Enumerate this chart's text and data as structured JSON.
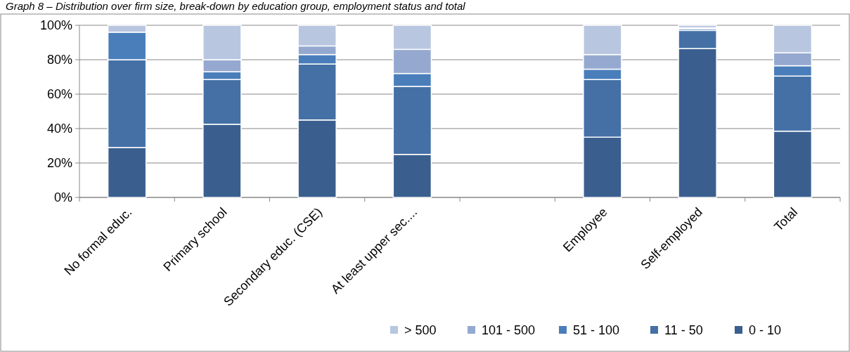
{
  "chart_data": {
    "type": "bar",
    "title": "Graph 8 – Distribution over firm size, break-down by education group, employment status and total",
    "categories": [
      "No formal educ.",
      "Primary school",
      "Secondary educ. (CSE)",
      "At least upper sec....",
      null,
      "Employee",
      "Self-employed",
      "Total"
    ],
    "stacked": true,
    "series": [
      {
        "name": "0 - 10",
        "color": "#3a5f8f",
        "values": [
          29,
          42.5,
          45,
          25,
          null,
          35,
          86.5,
          38.5
        ]
      },
      {
        "name": "11 - 50",
        "color": "#4470a6",
        "values": [
          51,
          26,
          32.5,
          39.5,
          null,
          33.5,
          10.5,
          32
        ]
      },
      {
        "name": "51 - 100",
        "color": "#4a7ebb",
        "values": [
          16,
          4.5,
          5.5,
          7.5,
          null,
          6,
          1,
          6
        ]
      },
      {
        "name": "101 - 500",
        "color": "#95a9d0",
        "values": [
          0,
          7,
          5,
          14,
          null,
          8.5,
          0.5,
          7.5
        ]
      },
      {
        "name": "> 500",
        "color": "#b9c6e0",
        "values": [
          4,
          20,
          12,
          14,
          null,
          17,
          1.5,
          16
        ]
      }
    ],
    "ylim": [
      0,
      100
    ],
    "yticks": [
      {
        "value": 0,
        "label": "0%"
      },
      {
        "value": 20,
        "label": "20%"
      },
      {
        "value": 40,
        "label": "40%"
      },
      {
        "value": 60,
        "label": "60%"
      },
      {
        "value": 80,
        "label": "80%"
      },
      {
        "value": 100,
        "label": "100%"
      }
    ],
    "grid": "y",
    "legend": "bottom right"
  }
}
